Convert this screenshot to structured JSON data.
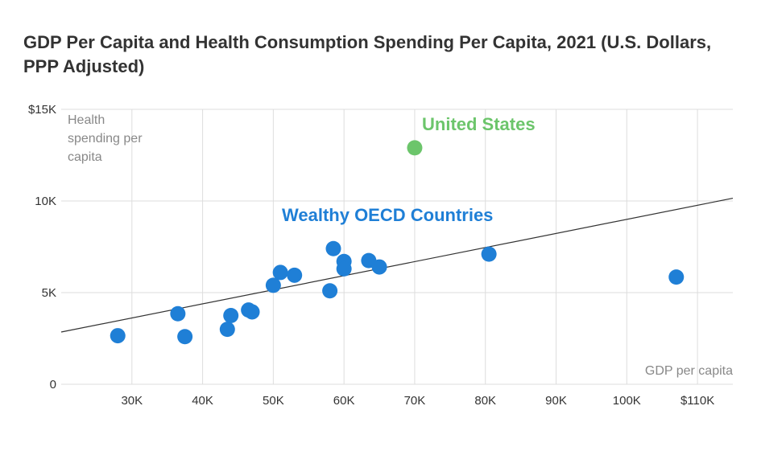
{
  "title": "GDP Per Capita and Health Consumption Spending Per Capita, 2021 (U.S. Dollars, PPP Adjusted)",
  "colors": {
    "oecd": "#1f7fd6",
    "us": "#6cc56b",
    "trend": "#333333",
    "grid": "#dddddd"
  },
  "chart_data": {
    "type": "scatter",
    "title": "GDP Per Capita and Health Consumption Spending Per Capita, 2021 (U.S. Dollars, PPP Adjusted)",
    "xlabel": "GDP per capita",
    "ylabel_lines": [
      "Health",
      "spending per",
      "capita"
    ],
    "xlim": [
      20000,
      115000
    ],
    "ylim": [
      0,
      15000
    ],
    "x_ticks": [
      {
        "value": 30000,
        "label": "30K"
      },
      {
        "value": 40000,
        "label": "40K"
      },
      {
        "value": 50000,
        "label": "50K"
      },
      {
        "value": 60000,
        "label": "60K"
      },
      {
        "value": 70000,
        "label": "70K"
      },
      {
        "value": 80000,
        "label": "80K"
      },
      {
        "value": 90000,
        "label": "90K"
      },
      {
        "value": 100000,
        "label": "100K"
      },
      {
        "value": 110000,
        "label": "$110K"
      }
    ],
    "y_ticks": [
      {
        "value": 0,
        "label": "0"
      },
      {
        "value": 5000,
        "label": "5K"
      },
      {
        "value": 10000,
        "label": "10K"
      },
      {
        "value": 15000,
        "label": "$15K"
      }
    ],
    "grid": true,
    "trendline": {
      "x": [
        20000,
        115000
      ],
      "y": [
        2850,
        10150
      ]
    },
    "series": [
      {
        "name": "Wealthy OECD Countries",
        "color": "#1f7fd6",
        "points": [
          {
            "x": 28000,
            "y": 2650
          },
          {
            "x": 36500,
            "y": 3850
          },
          {
            "x": 37500,
            "y": 2600
          },
          {
            "x": 43500,
            "y": 3000
          },
          {
            "x": 44000,
            "y": 3750
          },
          {
            "x": 46500,
            "y": 4050
          },
          {
            "x": 47000,
            "y": 3950
          },
          {
            "x": 50000,
            "y": 5400
          },
          {
            "x": 51000,
            "y": 6100
          },
          {
            "x": 53000,
            "y": 5950
          },
          {
            "x": 58000,
            "y": 5100
          },
          {
            "x": 58500,
            "y": 7400
          },
          {
            "x": 60000,
            "y": 6700
          },
          {
            "x": 60000,
            "y": 6300
          },
          {
            "x": 63500,
            "y": 6750
          },
          {
            "x": 65000,
            "y": 6400
          },
          {
            "x": 80500,
            "y": 7100
          },
          {
            "x": 107000,
            "y": 5850
          }
        ]
      },
      {
        "name": "United States",
        "color": "#6cc56b",
        "points": [
          {
            "x": 70000,
            "y": 12900
          }
        ]
      }
    ]
  }
}
